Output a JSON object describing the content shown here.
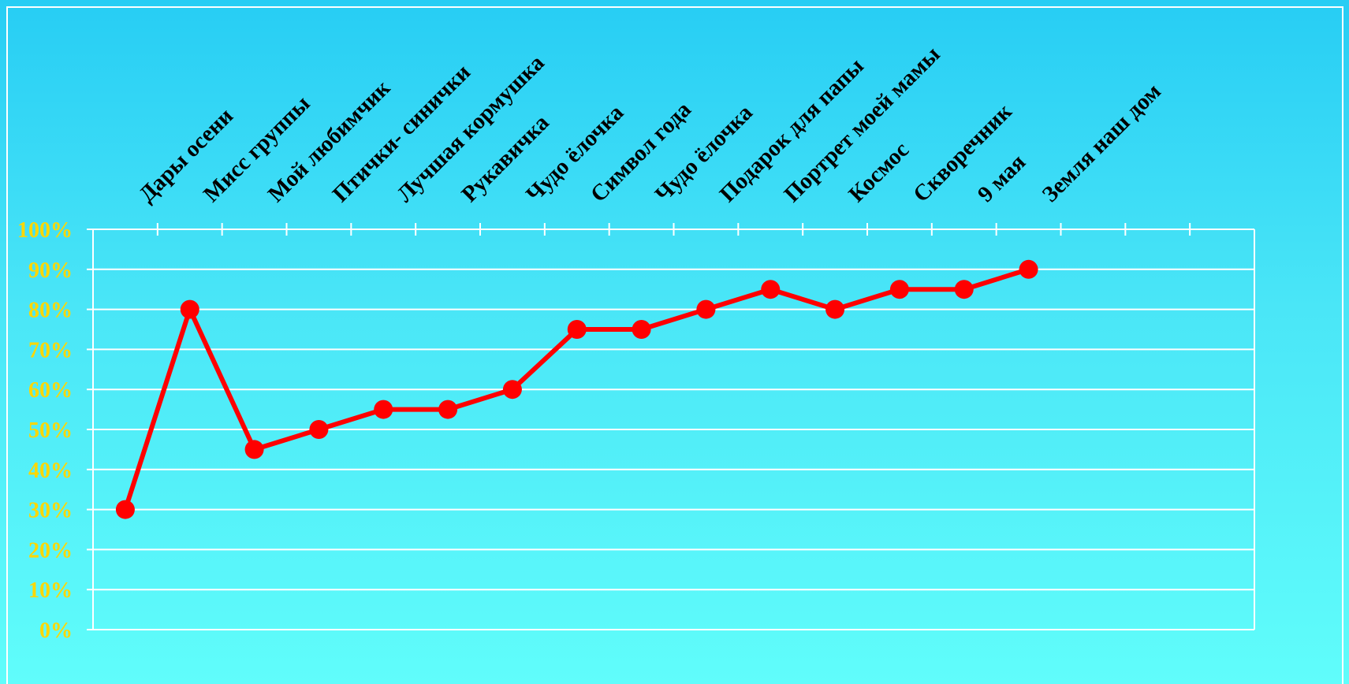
{
  "chart_data": {
    "type": "line",
    "categories": [
      "Дары осени",
      "Мисс группы",
      "Мой любимчик",
      "Птички- синички",
      "Лучшая кормушка",
      "Рукавичка",
      "Чудо ёлочка",
      "Символ года",
      "Чудо ёлочка",
      "Подарок для папы",
      "Портрет моей мамы",
      "Космос",
      "Скворечник",
      "9 мая",
      "Земля наш дом"
    ],
    "series": [
      {
        "values": [
          30,
          80,
          45,
          50,
          55,
          55,
          60,
          75,
          75,
          80,
          85,
          80,
          85,
          85,
          90
        ]
      }
    ],
    "y_tick_labels": [
      "0%",
      "10%",
      "20%",
      "30%",
      "40%",
      "50%",
      "60%",
      "70%",
      "80%",
      "90%",
      "100%"
    ],
    "ylim": [
      0,
      100
    ],
    "grid": true,
    "title": "",
    "xlabel": "",
    "ylabel": "",
    "legend": "none",
    "colors": {
      "line": "#ff0000",
      "tick_label": "#ffd700",
      "grid": "#ffffff",
      "category_label": "#000000"
    }
  }
}
